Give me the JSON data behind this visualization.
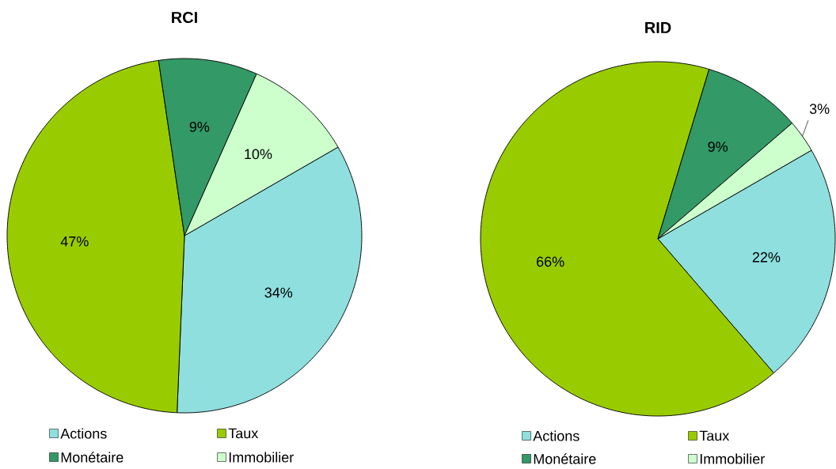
{
  "chart_data": [
    {
      "type": "pie",
      "title": "RCI",
      "categories": [
        "Actions",
        "Taux",
        "Monétaire",
        "Immobilier"
      ],
      "values": [
        34,
        47,
        9,
        10
      ],
      "value_labels": [
        "34%",
        "47%",
        "9%",
        "10%"
      ],
      "colors": [
        "#8FDFDF",
        "#99CC00",
        "#339966",
        "#CCFFCC"
      ],
      "legend": "bottom"
    },
    {
      "type": "pie",
      "title": "RID",
      "categories": [
        "Actions",
        "Taux",
        "Monétaire",
        "Immobilier"
      ],
      "values": [
        22,
        66,
        9,
        3
      ],
      "value_labels": [
        "22%",
        "66%",
        "9%",
        "3%"
      ],
      "colors": [
        "#8FDFDF",
        "#99CC00",
        "#339966",
        "#CCFFCC"
      ],
      "legend": "bottom"
    }
  ]
}
